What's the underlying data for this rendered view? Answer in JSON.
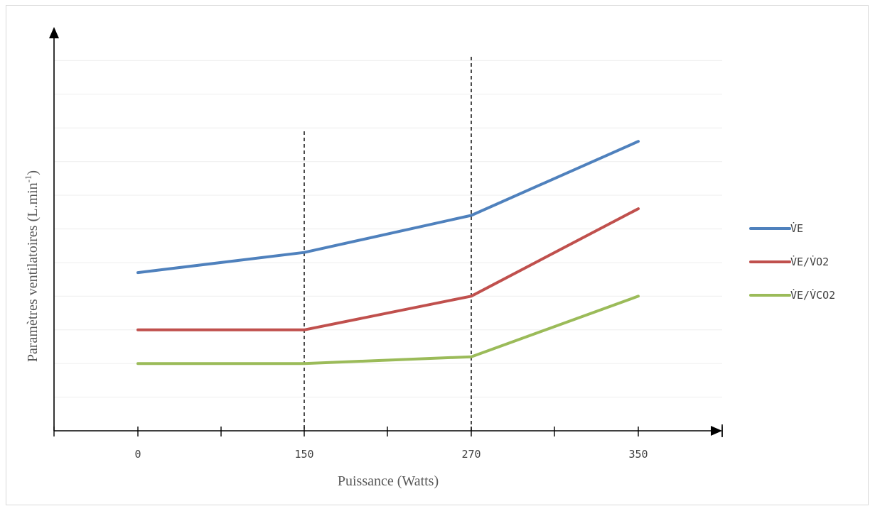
{
  "chart_data": {
    "type": "line",
    "x": [
      "0",
      "150",
      "270",
      "350"
    ],
    "xlabel": "Puissance (Watts)",
    "ylabel_main": "Paramètres ventilatoires (L.min",
    "ylabel_sup": "-1",
    "ylabel_close": ")",
    "ylim": [
      0,
      12
    ],
    "grid": true,
    "legend_position": "right",
    "series": [
      {
        "name": "V̇E",
        "color": "#4f81bd",
        "values": [
          4.7,
          5.3,
          6.4,
          8.6
        ]
      },
      {
        "name": "V̇E/V̇O2",
        "color": "#c0504d",
        "values": [
          3.0,
          3.0,
          4.0,
          6.6
        ]
      },
      {
        "name": "V̇E/V̇CO2",
        "color": "#9bbb59",
        "values": [
          2.0,
          2.0,
          2.2,
          4.0
        ]
      }
    ],
    "threshold_lines_at": [
      "150",
      "270"
    ]
  }
}
